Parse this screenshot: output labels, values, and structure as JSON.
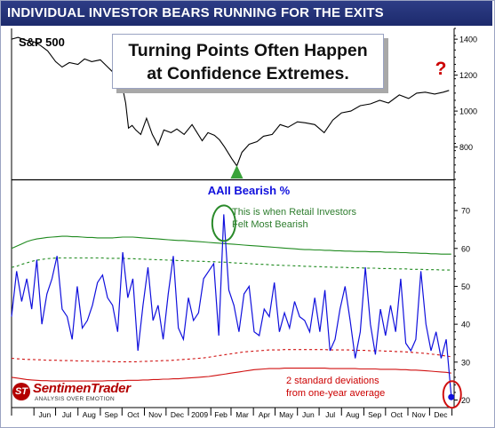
{
  "header": {
    "title": "INDIVIDUAL INVESTOR BEARS RUNNING FOR THE EXITS"
  },
  "callout": {
    "line1": "Turning Points Often Happen",
    "line2": "at Confidence Extremes."
  },
  "logo": {
    "name": "SentimenTrader",
    "tagline": "ANALYSIS OVER EMOTION",
    "mark": "ST"
  },
  "colors": {
    "title_bg": "#1f2c70",
    "spx": "#000000",
    "aaii": "#1010dd",
    "upper_band": "#1f8a1f",
    "lower_band": "#d01010",
    "annotation_green": "#2e7d2e",
    "annotation_red": "#cc0000"
  },
  "chart_data": [
    {
      "type": "line",
      "title": "S&P 500",
      "ylim": [
        620,
        1460
      ],
      "yticks": [
        800,
        1000,
        1200,
        1400
      ],
      "x": [
        "2008-05-01",
        "2008-05-10",
        "2008-05-20",
        "2008-06-01",
        "2008-06-10",
        "2008-06-20",
        "2008-07-01",
        "2008-07-10",
        "2008-07-20",
        "2008-08-01",
        "2008-08-10",
        "2008-08-20",
        "2008-09-01",
        "2008-09-10",
        "2008-09-20",
        "2008-09-30",
        "2008-10-06",
        "2008-10-10",
        "2008-10-15",
        "2008-10-20",
        "2008-10-27",
        "2008-11-04",
        "2008-11-12",
        "2008-11-20",
        "2008-11-28",
        "2008-12-08",
        "2008-12-16",
        "2008-12-26",
        "2009-01-06",
        "2009-01-13",
        "2009-01-20",
        "2009-01-28",
        "2009-02-06",
        "2009-02-13",
        "2009-02-20",
        "2009-03-02",
        "2009-03-09",
        "2009-03-16",
        "2009-03-26",
        "2009-04-06",
        "2009-04-15",
        "2009-04-27",
        "2009-05-08",
        "2009-05-19",
        "2009-06-01",
        "2009-06-12",
        "2009-06-25",
        "2009-07-08",
        "2009-07-20",
        "2009-08-01",
        "2009-08-14",
        "2009-08-27",
        "2009-09-10",
        "2009-09-23",
        "2009-10-05",
        "2009-10-20",
        "2009-11-02",
        "2009-11-13",
        "2009-11-25",
        "2009-12-08",
        "2009-12-20",
        "2009-12-28"
      ],
      "series": [
        {
          "values": [
            1400,
            1410,
            1395,
            1385,
            1365,
            1335,
            1275,
            1245,
            1270,
            1260,
            1290,
            1275,
            1285,
            1250,
            1210,
            1165,
            1045,
            905,
            920,
            895,
            870,
            960,
            870,
            810,
            895,
            880,
            900,
            870,
            925,
            880,
            835,
            880,
            865,
            840,
            800,
            735,
            695,
            770,
            815,
            830,
            860,
            870,
            925,
            910,
            940,
            935,
            925,
            880,
            950,
            990,
            1000,
            1030,
            1040,
            1060,
            1045,
            1090,
            1070,
            1100,
            1105,
            1095,
            1105,
            1115
          ]
        }
      ],
      "annotation": "?"
    },
    {
      "type": "line",
      "title": "AAII Bearish %",
      "ylim": [
        18,
        78
      ],
      "yticks": [
        20,
        30,
        40,
        50,
        60,
        70
      ],
      "x_labels": [
        "Jun",
        "Jul",
        "Aug",
        "Sep",
        "Oct",
        "Nov",
        "Dec",
        "2009",
        "Feb",
        "Mar",
        "Apr",
        "May",
        "Jun",
        "Jul",
        "Aug",
        "Sep",
        "Oct",
        "Nov",
        "Dec"
      ],
      "x": [
        "2008-05-01",
        "2008-05-08",
        "2008-05-15",
        "2008-05-22",
        "2008-05-29",
        "2008-06-05",
        "2008-06-12",
        "2008-06-19",
        "2008-06-26",
        "2008-07-03",
        "2008-07-10",
        "2008-07-17",
        "2008-07-24",
        "2008-07-31",
        "2008-08-07",
        "2008-08-14",
        "2008-08-21",
        "2008-08-28",
        "2008-09-04",
        "2008-09-11",
        "2008-09-18",
        "2008-09-25",
        "2008-10-02",
        "2008-10-09",
        "2008-10-16",
        "2008-10-23",
        "2008-10-30",
        "2008-11-06",
        "2008-11-13",
        "2008-11-20",
        "2008-11-27",
        "2008-12-04",
        "2008-12-11",
        "2008-12-18",
        "2008-12-25",
        "2009-01-01",
        "2009-01-08",
        "2009-01-15",
        "2009-01-22",
        "2009-01-29",
        "2009-02-05",
        "2009-02-12",
        "2009-02-19",
        "2009-02-26",
        "2009-03-05",
        "2009-03-12",
        "2009-03-19",
        "2009-03-26",
        "2009-04-02",
        "2009-04-09",
        "2009-04-16",
        "2009-04-23",
        "2009-04-30",
        "2009-05-07",
        "2009-05-14",
        "2009-05-21",
        "2009-05-28",
        "2009-06-04",
        "2009-06-11",
        "2009-06-18",
        "2009-06-25",
        "2009-07-02",
        "2009-07-09",
        "2009-07-16",
        "2009-07-23",
        "2009-07-30",
        "2009-08-06",
        "2009-08-13",
        "2009-08-20",
        "2009-08-27",
        "2009-09-03",
        "2009-09-10",
        "2009-09-17",
        "2009-09-24",
        "2009-10-01",
        "2009-10-08",
        "2009-10-15",
        "2009-10-22",
        "2009-10-29",
        "2009-11-05",
        "2009-11-12",
        "2009-11-19",
        "2009-11-26",
        "2009-12-03",
        "2009-12-10",
        "2009-12-17",
        "2009-12-24",
        "2009-12-31"
      ],
      "series": [
        {
          "name": "AAII Bearish %",
          "values": [
            42,
            54,
            46,
            52,
            44,
            57,
            40,
            48,
            52,
            58,
            44,
            42,
            36,
            50,
            39,
            41,
            45,
            51,
            53,
            47,
            45,
            38,
            59,
            47,
            52,
            33,
            45,
            55,
            41,
            45,
            36,
            48,
            58,
            39,
            36,
            47,
            41,
            43,
            52,
            54,
            56,
            37,
            69,
            49,
            45,
            38,
            48,
            50,
            38,
            37,
            44,
            42,
            51,
            38,
            43,
            39,
            46,
            42,
            41,
            38,
            47,
            38,
            49,
            33,
            36,
            44,
            50,
            41,
            31,
            38,
            55,
            40,
            32,
            44,
            37,
            45,
            38,
            52,
            35,
            33,
            36,
            54,
            40,
            33,
            38,
            31,
            36,
            21
          ]
        },
        {
          "name": "Upper band (+2 SD)",
          "values": [
            60,
            60.6,
            61.2,
            61.8,
            62.2,
            62.5,
            62.7,
            62.9,
            63,
            63.1,
            63.2,
            63.2,
            63.1,
            63.1,
            63,
            62.9,
            62.9,
            62.8,
            62.8,
            62.8,
            62.8,
            62.9,
            63,
            63,
            63,
            62.9,
            62.8,
            62.7,
            62.6,
            62.5,
            62.4,
            62.3,
            62.2,
            62.1,
            62.1,
            62,
            61.9,
            61.8,
            61.7,
            61.6,
            61.5,
            61.4,
            61.3,
            61.2,
            61.1,
            61,
            60.9,
            60.8,
            60.7,
            60.6,
            60.5,
            60.4,
            60.3,
            60.2,
            60.1,
            60,
            59.9,
            59.8,
            59.7,
            59.7,
            59.6,
            59.6,
            59.5,
            59.5,
            59.4,
            59.4,
            59.3,
            59.3,
            59.2,
            59.2,
            59.2,
            59.1,
            59.1,
            59.1,
            59,
            59,
            59,
            58.9,
            58.9,
            58.8,
            58.8,
            58.7,
            58.7,
            58.6,
            58.6,
            58.5,
            58.5,
            58.5
          ]
        },
        {
          "name": "Upper band (+1 SD)",
          "values": [
            55,
            55.3,
            55.8,
            56.2,
            56.6,
            56.9,
            57.1,
            57.3,
            57.4,
            57.5,
            57.5,
            57.5,
            57.5,
            57.5,
            57.5,
            57.5,
            57.5,
            57.5,
            57.5,
            57.4,
            57.4,
            57.4,
            57.4,
            57.3,
            57.3,
            57.2,
            57.2,
            57.1,
            57.1,
            57,
            57,
            56.9,
            56.9,
            56.8,
            56.8,
            56.7,
            56.7,
            56.6,
            56.6,
            56.5,
            56.5,
            56.4,
            56.4,
            56.3,
            56.2,
            56.1,
            56.1,
            56,
            55.9,
            55.8,
            55.8,
            55.7,
            55.6,
            55.6,
            55.5,
            55.5,
            55.4,
            55.4,
            55.3,
            55.3,
            55.2,
            55.2,
            55.1,
            55.1,
            55,
            55,
            55,
            54.9,
            54.9,
            54.9,
            54.8,
            54.8,
            54.8,
            54.7,
            54.7,
            54.7,
            54.6,
            54.6,
            54.6,
            54.5,
            54.5,
            54.5,
            54.4,
            54.4,
            54.4,
            54.3,
            54.3,
            54.3
          ]
        },
        {
          "name": "Lower band (-1 SD)",
          "values": [
            31,
            30.9,
            30.8,
            30.7,
            30.7,
            30.6,
            30.6,
            30.5,
            30.5,
            30.5,
            30.4,
            30.4,
            30.4,
            30.3,
            30.3,
            30.3,
            30.2,
            30.2,
            30.2,
            30.2,
            30.1,
            30.1,
            30.1,
            30.1,
            30.1,
            30.1,
            30.2,
            30.2,
            30.3,
            30.3,
            30.4,
            30.4,
            30.5,
            30.6,
            30.7,
            30.8,
            30.9,
            31,
            31.1,
            31.3,
            31.5,
            31.7,
            31.9,
            32.1,
            32.3,
            32.5,
            32.7,
            32.8,
            32.9,
            33,
            33.1,
            33.2,
            33.2,
            33.2,
            33.3,
            33.3,
            33.3,
            33.3,
            33.3,
            33.3,
            33.3,
            33.3,
            33.3,
            33.2,
            33.2,
            33.2,
            33.2,
            33.2,
            33.1,
            33.1,
            33.1,
            33,
            33,
            33,
            32.9,
            32.9,
            32.8,
            32.8,
            32.7,
            32.6,
            32.5,
            32.4,
            32.3,
            32.1,
            32,
            31.8,
            31.6,
            31.4
          ]
        },
        {
          "name": "Lower band (-2 SD)",
          "values": [
            26,
            25.8,
            25.6,
            25.4,
            25.3,
            25.2,
            25.1,
            25.1,
            25,
            25,
            25,
            25,
            25,
            25,
            25,
            25,
            25,
            25,
            25,
            25.1,
            25.1,
            25.1,
            25.1,
            25.2,
            25.2,
            25.2,
            25.3,
            25.3,
            25.4,
            25.4,
            25.5,
            25.5,
            25.6,
            25.6,
            25.7,
            25.8,
            25.9,
            26,
            26.1,
            26.2,
            26.4,
            26.6,
            26.8,
            27,
            27.2,
            27.4,
            27.6,
            27.8,
            28,
            28.1,
            28.2,
            28.3,
            28.3,
            28.3,
            28.4,
            28.4,
            28.4,
            28.4,
            28.4,
            28.4,
            28.4,
            28.4,
            28.4,
            28.3,
            28.3,
            28.3,
            28.3,
            28.3,
            28.3,
            28.2,
            28.2,
            28.2,
            28.2,
            28.1,
            28.1,
            28.1,
            28.1,
            28,
            28,
            27.9,
            27.9,
            27.8,
            27.7,
            27.6,
            27.5,
            27.4,
            27.3,
            27.1
          ]
        }
      ],
      "annotations": [
        {
          "text_lines": [
            "This is when Retail Investors",
            "Felt Most Bearish"
          ],
          "color": "green"
        },
        {
          "text_lines": [
            "2 standard deviations",
            "from one-year average"
          ],
          "color": "red"
        }
      ]
    }
  ]
}
